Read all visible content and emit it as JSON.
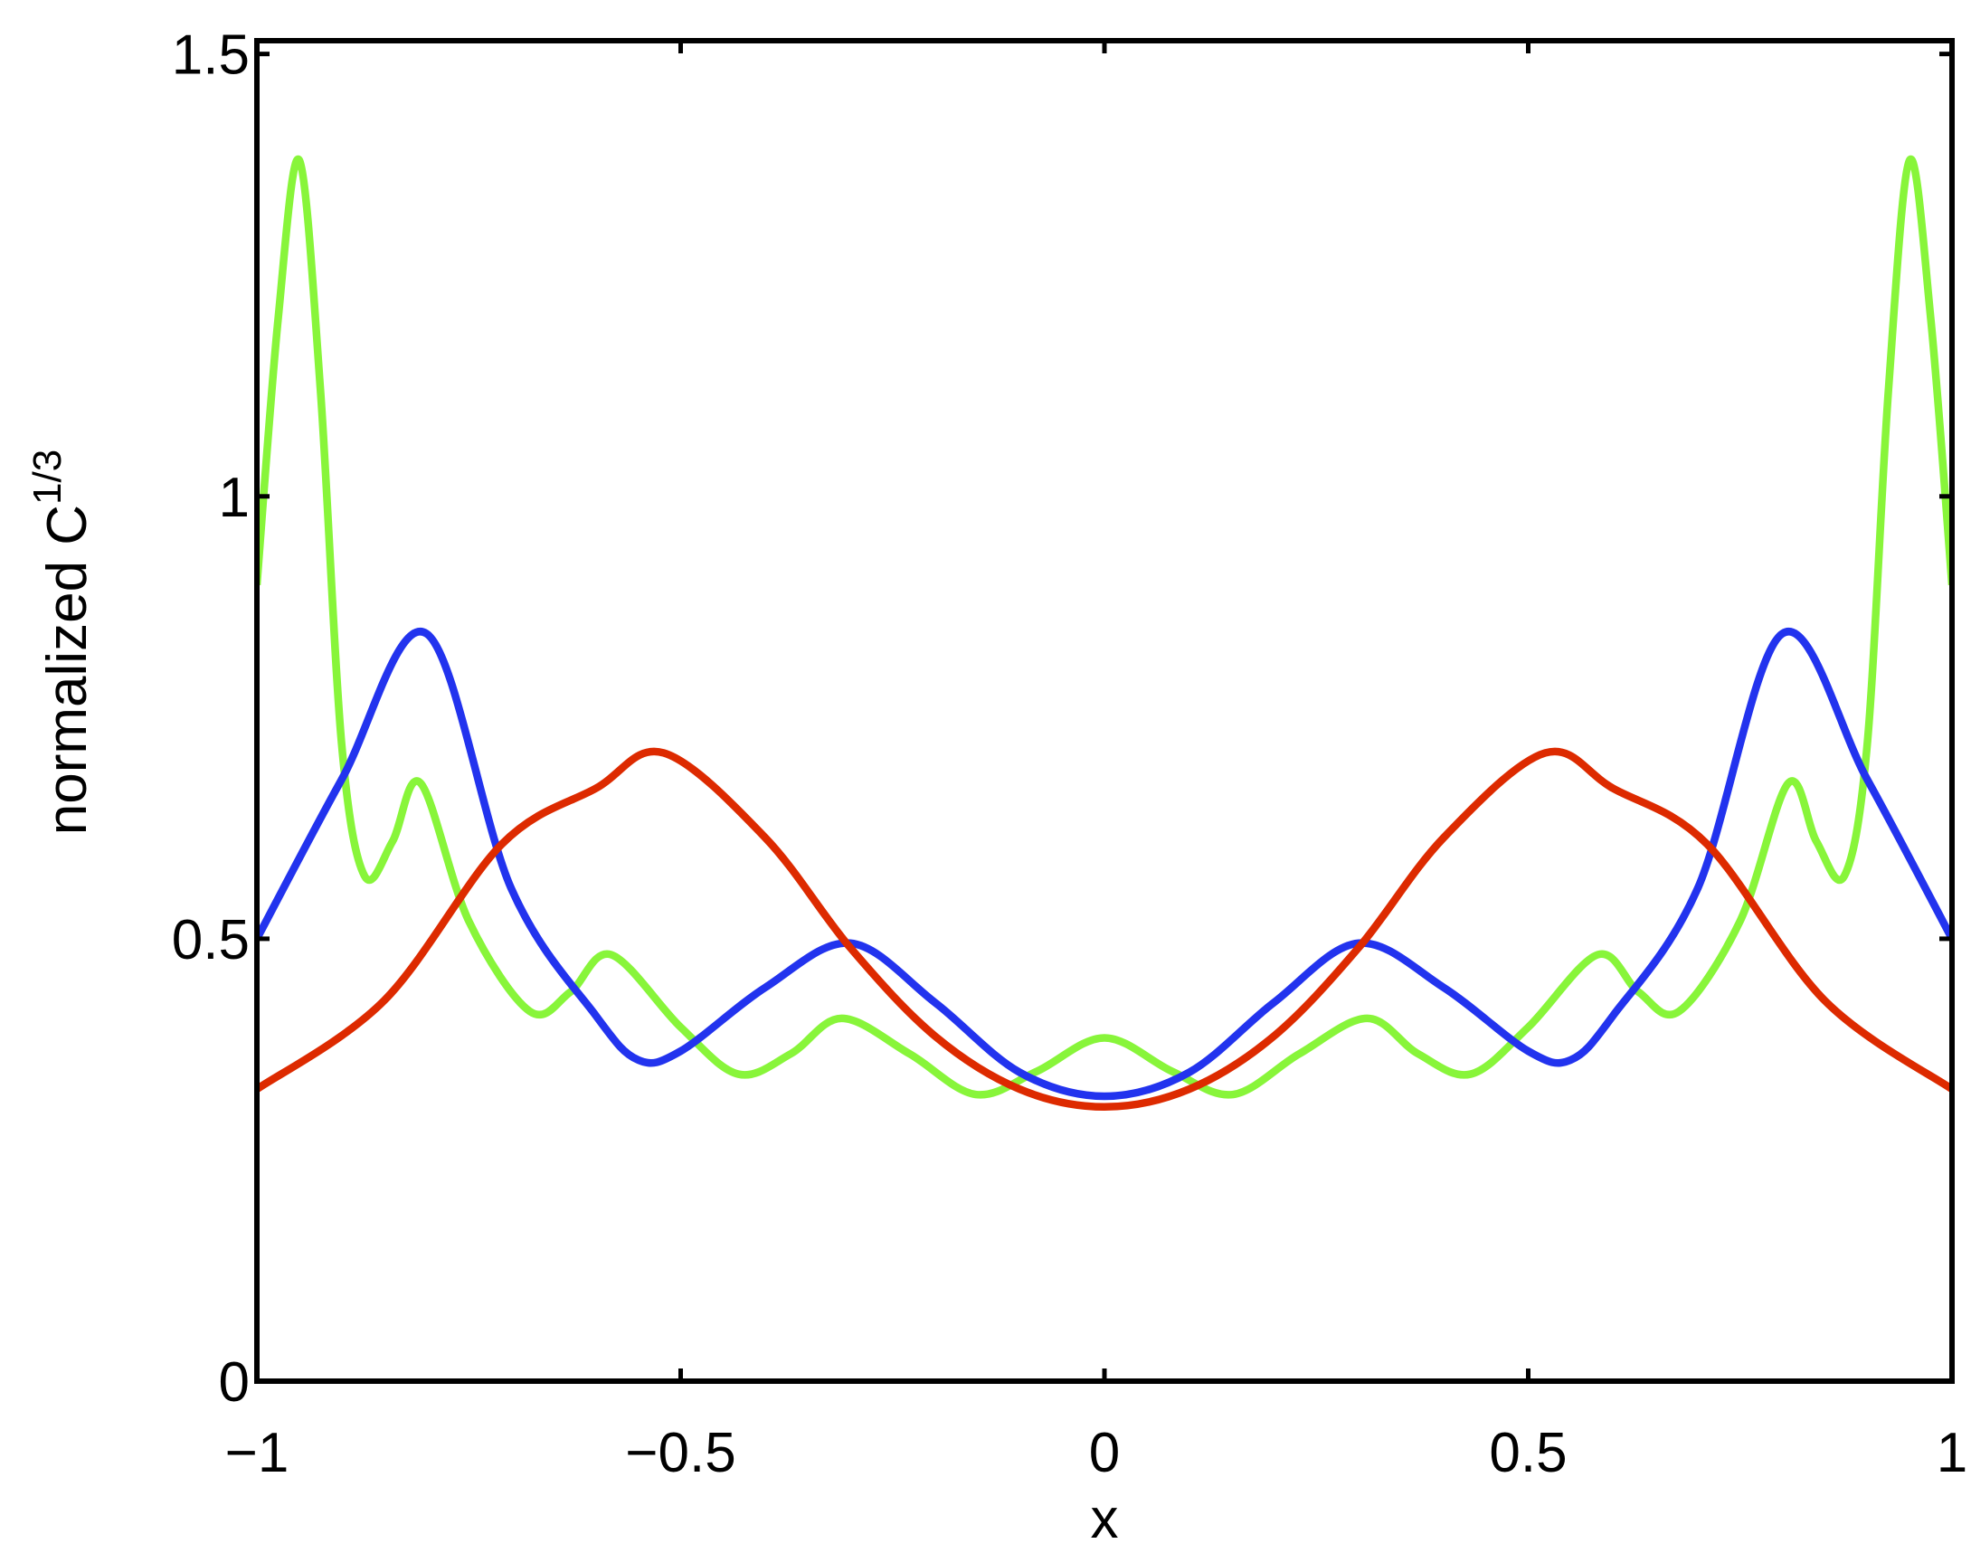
{
  "chart_data": {
    "type": "line",
    "xlabel": "x",
    "ylabel": "normalized C",
    "ylabel_superscript": "1/3",
    "xlim": [
      -1,
      1
    ],
    "ylim": [
      0,
      1.515
    ],
    "xticks": [
      {
        "value": -1,
        "label": "−1"
      },
      {
        "value": -0.5,
        "label": "−0.5"
      },
      0,
      0.5,
      1
    ],
    "yticks": [
      0,
      0.5,
      1,
      1.5
    ],
    "grid": false,
    "series": [
      {
        "color": "#88f53a",
        "x": [
          -1,
          -0.975,
          -0.95,
          -0.925,
          -0.9,
          -0.873,
          -0.84,
          -0.807,
          -0.75,
          -0.678,
          -0.63,
          -0.582,
          -0.5,
          -0.432,
          -0.37,
          -0.31,
          -0.23,
          -0.152,
          -0.08,
          0,
          0.08,
          0.152,
          0.23,
          0.31,
          0.37,
          0.432,
          0.5,
          0.582,
          0.63,
          0.678,
          0.75,
          0.807,
          0.84,
          0.873,
          0.9,
          0.925,
          0.95,
          0.975,
          1
        ],
        "values": [
          0.9,
          1.2,
          1.38,
          1.12,
          0.72,
          0.571,
          0.61,
          0.676,
          0.52,
          0.418,
          0.44,
          0.482,
          0.4,
          0.347,
          0.37,
          0.41,
          0.37,
          0.324,
          0.35,
          0.388,
          0.35,
          0.324,
          0.37,
          0.41,
          0.37,
          0.347,
          0.4,
          0.482,
          0.44,
          0.418,
          0.52,
          0.676,
          0.61,
          0.571,
          0.72,
          1.12,
          1.38,
          1.2,
          0.9
        ]
      },
      {
        "color": "#2233ee",
        "x": [
          -1,
          -0.9,
          -0.8,
          -0.7,
          -0.6,
          -0.55,
          -0.5,
          -0.4,
          -0.3,
          -0.2,
          -0.1,
          0,
          0.1,
          0.2,
          0.3,
          0.4,
          0.5,
          0.55,
          0.6,
          0.7,
          0.8,
          0.9,
          1
        ],
        "values": [
          0.5,
          0.68,
          0.845,
          0.557,
          0.413,
          0.363,
          0.373,
          0.445,
          0.495,
          0.428,
          0.349,
          0.322,
          0.349,
          0.428,
          0.495,
          0.445,
          0.373,
          0.363,
          0.413,
          0.557,
          0.845,
          0.68,
          0.5
        ]
      },
      {
        "color": "#dd2a00",
        "x": [
          -1,
          -0.85,
          -0.711,
          -0.6,
          -0.52,
          -0.4,
          -0.3,
          -0.2,
          -0.1,
          0,
          0.1,
          0.2,
          0.3,
          0.4,
          0.52,
          0.6,
          0.711,
          0.85,
          1
        ],
        "values": [
          0.33,
          0.43,
          0.607,
          0.67,
          0.71,
          0.614,
          0.49,
          0.39,
          0.33,
          0.31,
          0.33,
          0.39,
          0.49,
          0.614,
          0.71,
          0.67,
          0.607,
          0.43,
          0.33
        ]
      }
    ]
  }
}
